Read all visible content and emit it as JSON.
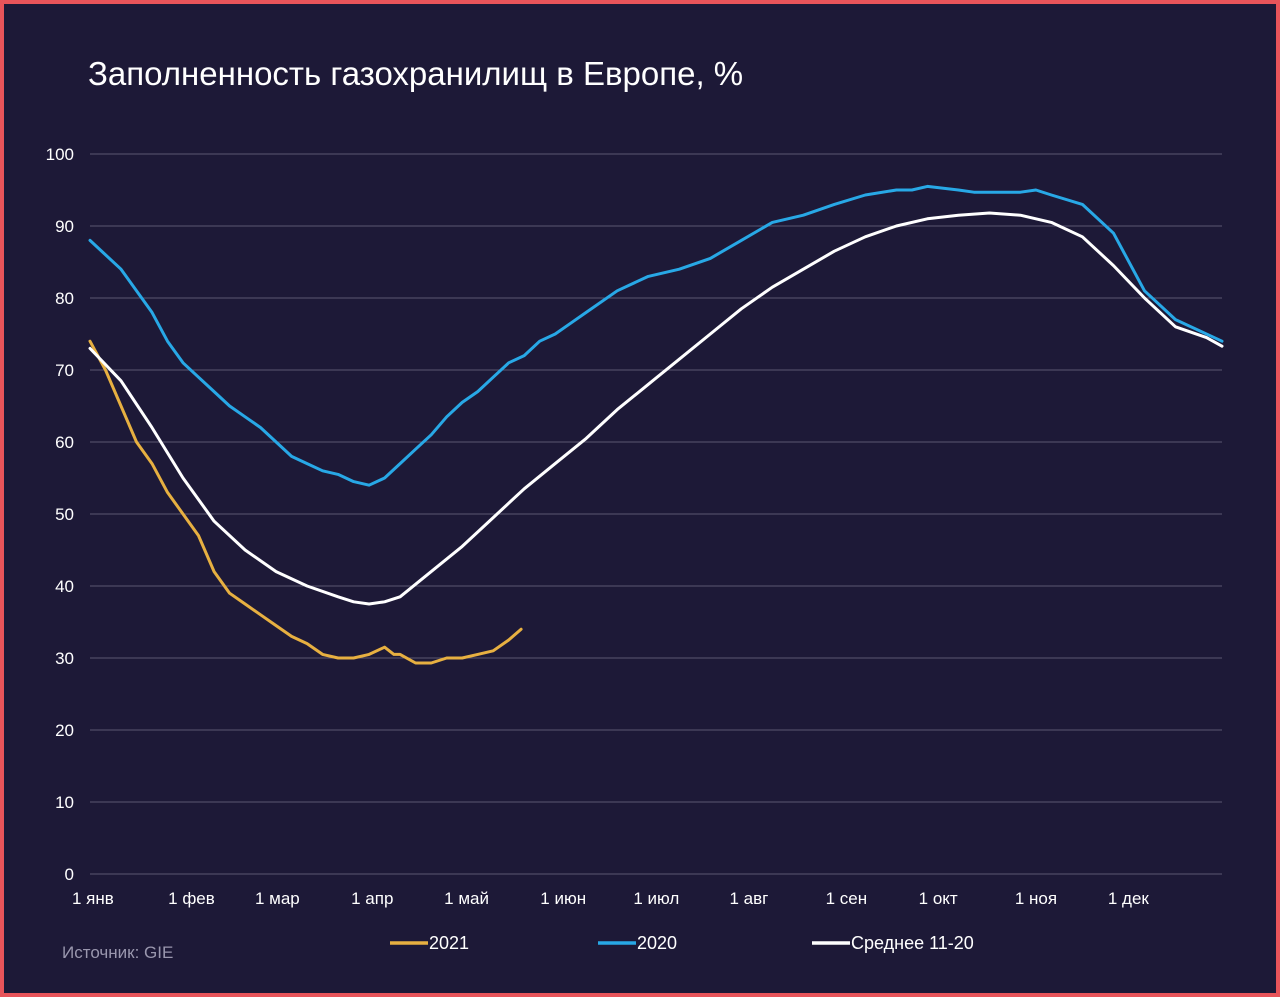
{
  "chart_data": {
    "type": "line",
    "title": "Заполненность газохранилищ в Европе, %",
    "source": "Источник: GIE",
    "xlabel": "",
    "ylabel": "",
    "ylim": [
      0,
      100
    ],
    "yticks": [
      0,
      10,
      20,
      30,
      40,
      50,
      60,
      70,
      80,
      90,
      100
    ],
    "xlim": [
      0,
      365
    ],
    "xticks": [
      {
        "day": 0,
        "label": "1 янв"
      },
      {
        "day": 31,
        "label": "1 фев"
      },
      {
        "day": 59,
        "label": "1 мар"
      },
      {
        "day": 90,
        "label": "1 апр"
      },
      {
        "day": 120,
        "label": "1 май"
      },
      {
        "day": 151,
        "label": "1 июн"
      },
      {
        "day": 181,
        "label": "1 июл"
      },
      {
        "day": 212,
        "label": "1 авг"
      },
      {
        "day": 243,
        "label": "1 сен"
      },
      {
        "day": 273,
        "label": "1 окт"
      },
      {
        "day": 304,
        "label": "1 ноя"
      },
      {
        "day": 334,
        "label": "1 дек"
      }
    ],
    "grid": true,
    "legend_position": "bottom",
    "series": [
      {
        "name": "2021",
        "color": "#e7b041",
        "x": [
          0,
          5,
          10,
          15,
          20,
          25,
          30,
          35,
          40,
          45,
          50,
          55,
          60,
          65,
          70,
          75,
          80,
          85,
          90,
          95,
          98,
          100,
          105,
          110,
          115,
          120,
          125,
          130,
          135,
          139
        ],
        "y": [
          74,
          70,
          65,
          60,
          57,
          53,
          50,
          47,
          42,
          39,
          37.5,
          36,
          34.5,
          33,
          32,
          30.5,
          30,
          30,
          30.5,
          31.5,
          30.5,
          30.5,
          29.3,
          29.3,
          30,
          30,
          30.5,
          31,
          32.5,
          34
        ]
      },
      {
        "name": "2020",
        "color": "#28a8e6",
        "x": [
          0,
          10,
          20,
          25,
          30,
          35,
          40,
          45,
          50,
          55,
          60,
          65,
          70,
          75,
          80,
          85,
          90,
          95,
          100,
          105,
          110,
          115,
          120,
          125,
          130,
          135,
          140,
          145,
          150,
          155,
          160,
          170,
          180,
          190,
          200,
          210,
          220,
          230,
          240,
          250,
          260,
          265,
          270,
          280,
          285,
          290,
          300,
          305,
          310,
          320,
          330,
          340,
          350,
          365
        ],
        "y": [
          88,
          84,
          78,
          74,
          71,
          69,
          67,
          65,
          63.5,
          62,
          60,
          58,
          57,
          56,
          55.5,
          54.5,
          54,
          55,
          57,
          59,
          61,
          63.5,
          65.5,
          67,
          69,
          71,
          72,
          74,
          75,
          76.5,
          78,
          81,
          83,
          84,
          85.5,
          88,
          90.5,
          91.5,
          93,
          94.3,
          95,
          95,
          95.5,
          95,
          94.7,
          94.7,
          94.7,
          95,
          94.3,
          93,
          89,
          81,
          77,
          74
        ]
      },
      {
        "name": "Среднее 11-20",
        "color": "#ffffff",
        "x": [
          0,
          10,
          20,
          30,
          40,
          50,
          60,
          70,
          80,
          85,
          90,
          95,
          100,
          110,
          120,
          130,
          140,
          150,
          160,
          170,
          180,
          190,
          200,
          210,
          220,
          230,
          240,
          250,
          260,
          270,
          280,
          290,
          300,
          310,
          320,
          330,
          340,
          350,
          360,
          365
        ],
        "y": [
          73,
          68.5,
          62,
          55,
          49,
          45,
          42,
          40,
          38.5,
          37.8,
          37.5,
          37.8,
          38.5,
          42,
          45.5,
          49.5,
          53.5,
          57,
          60.5,
          64.5,
          68,
          71.5,
          75,
          78.5,
          81.5,
          84,
          86.5,
          88.5,
          90,
          91,
          91.5,
          91.8,
          91.5,
          90.5,
          88.5,
          84.5,
          80,
          76,
          74.5,
          73.3
        ]
      }
    ]
  }
}
